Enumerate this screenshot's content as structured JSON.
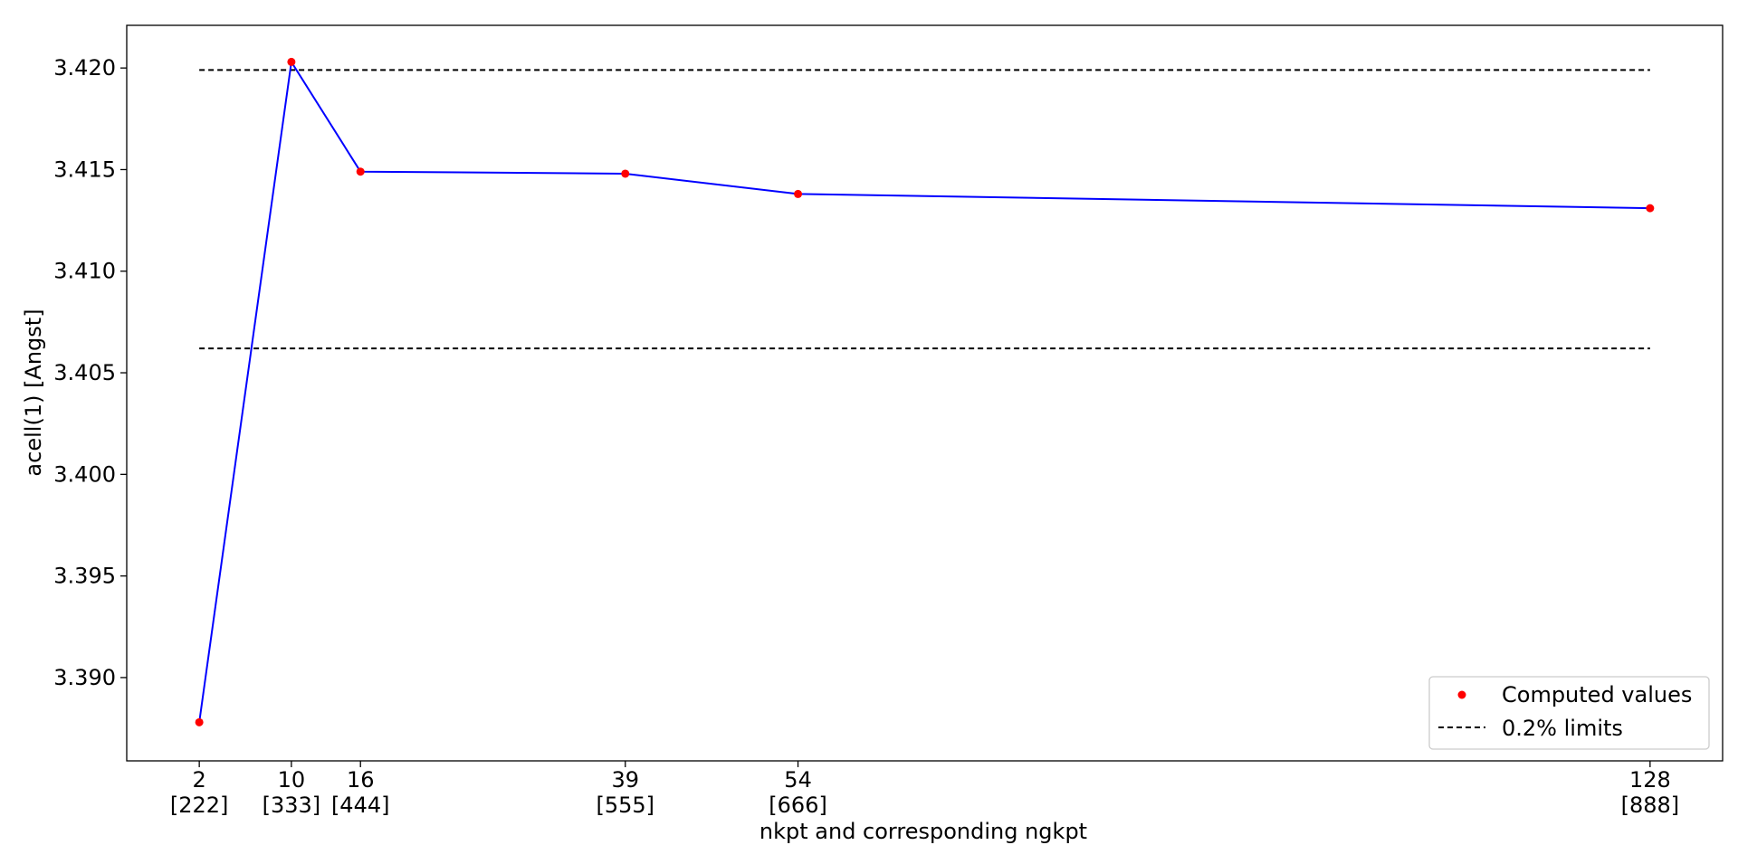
{
  "chart_data": {
    "type": "line",
    "title": "",
    "xlabel": "nkpt and corresponding ngkpt",
    "ylabel": "acell(1) [Angst]",
    "x": [
      2,
      10,
      16,
      39,
      54,
      128
    ],
    "x_tick_labels": [
      "2",
      "10",
      "16",
      "39",
      "54",
      "128"
    ],
    "x_tick_sublabels": [
      "[222]",
      "[333]",
      "[444]",
      "[555]",
      "[666]",
      "[888]"
    ],
    "xlim": [
      -4.3,
      134.3
    ],
    "ylim": [
      3.3859,
      3.4221
    ],
    "y_ticks": [
      3.39,
      3.395,
      3.4,
      3.405,
      3.41,
      3.415,
      3.42
    ],
    "y_tick_labels": [
      "3.390",
      "3.395",
      "3.400",
      "3.405",
      "3.410",
      "3.415",
      "3.420"
    ],
    "series": [
      {
        "name": "Computed values",
        "values": [
          3.3878,
          3.4203,
          3.4149,
          3.4148,
          3.4138,
          3.4131
        ],
        "line_color": "#0000ff",
        "marker_color": "#ff0000"
      }
    ],
    "limits": {
      "name": "0.2% limits",
      "upper": 3.4199,
      "lower": 3.4062,
      "x_range": [
        2,
        128
      ],
      "style": "dashed",
      "color": "#000000"
    },
    "grid": false,
    "legend_position": "lower-right"
  }
}
